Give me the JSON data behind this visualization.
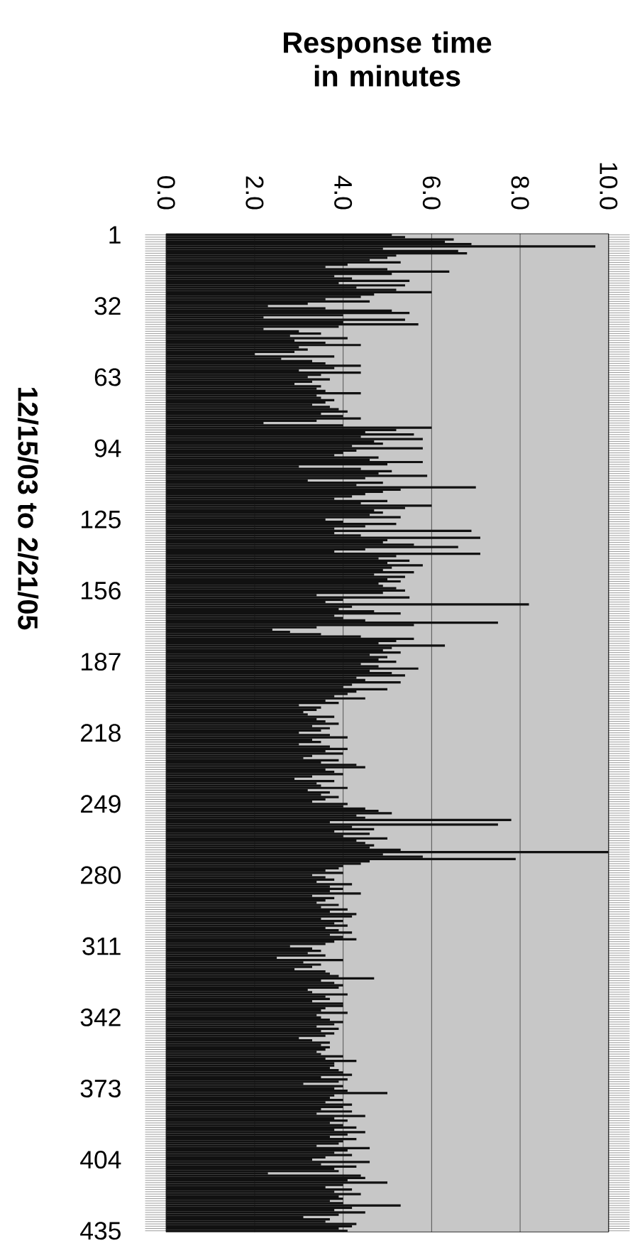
{
  "chart_data": {
    "type": "bar",
    "orientation": "horizontal",
    "title": "Response time in minutes",
    "ylabel": "12/15/03 to 2/21/05",
    "color": "#111111",
    "grid": "x",
    "xlim": [
      0,
      10
    ],
    "xticks": [
      {
        "value": 0,
        "label": "0.0"
      },
      {
        "value": 2,
        "label": "2.0"
      },
      {
        "value": 4,
        "label": "4.0"
      },
      {
        "value": 6,
        "label": "6.0"
      },
      {
        "value": 8,
        "label": "8.0"
      },
      {
        "value": 10,
        "label": "10.0"
      }
    ],
    "categories": [
      "1",
      null,
      null,
      null,
      null,
      null,
      null,
      null,
      null,
      null,
      null,
      null,
      null,
      null,
      null,
      null,
      null,
      null,
      null,
      null,
      null,
      null,
      null,
      null,
      null,
      null,
      null,
      null,
      null,
      null,
      null,
      "32",
      null,
      null,
      null,
      null,
      null,
      null,
      null,
      null,
      null,
      null,
      null,
      null,
      null,
      null,
      null,
      null,
      null,
      null,
      null,
      null,
      null,
      null,
      null,
      null,
      null,
      null,
      null,
      null,
      null,
      null,
      "63",
      null,
      null,
      null,
      null,
      null,
      null,
      null,
      null,
      null,
      null,
      null,
      null,
      null,
      null,
      null,
      null,
      null,
      null,
      null,
      null,
      null,
      null,
      null,
      null,
      null,
      null,
      null,
      null,
      null,
      null,
      "94",
      null,
      null,
      null,
      null,
      null,
      null,
      null,
      null,
      null,
      null,
      null,
      null,
      null,
      null,
      null,
      null,
      null,
      null,
      null,
      null,
      null,
      null,
      null,
      null,
      null,
      null,
      null,
      null,
      null,
      null,
      "125",
      null,
      null,
      null,
      null,
      null,
      null,
      null,
      null,
      null,
      null,
      null,
      null,
      null,
      null,
      null,
      null,
      null,
      null,
      null,
      null,
      null,
      null,
      null,
      null,
      null,
      null,
      null,
      null,
      null,
      null,
      "156",
      null,
      null,
      null,
      null,
      null,
      null,
      null,
      null,
      null,
      null,
      null,
      null,
      null,
      null,
      null,
      null,
      null,
      null,
      null,
      null,
      null,
      null,
      null,
      null,
      null,
      null,
      null,
      null,
      null,
      null,
      "187",
      null,
      null,
      null,
      null,
      null,
      null,
      null,
      null,
      null,
      null,
      null,
      null,
      null,
      null,
      null,
      null,
      null,
      null,
      null,
      null,
      null,
      null,
      null,
      null,
      null,
      null,
      null,
      null,
      null,
      null,
      "218",
      null,
      null,
      null,
      null,
      null,
      null,
      null,
      null,
      null,
      null,
      null,
      null,
      null,
      null,
      null,
      null,
      null,
      null,
      null,
      null,
      null,
      null,
      null,
      null,
      null,
      null,
      null,
      null,
      null,
      null,
      "249",
      null,
      null,
      null,
      null,
      null,
      null,
      null,
      null,
      null,
      null,
      null,
      null,
      null,
      null,
      null,
      null,
      null,
      null,
      null,
      null,
      null,
      null,
      null,
      null,
      null,
      null,
      null,
      null,
      null,
      null,
      "280",
      null,
      null,
      null,
      null,
      null,
      null,
      null,
      null,
      null,
      null,
      null,
      null,
      null,
      null,
      null,
      null,
      null,
      null,
      null,
      null,
      null,
      null,
      null,
      null,
      null,
      null,
      null,
      null,
      null,
      null,
      "311",
      null,
      null,
      null,
      null,
      null,
      null,
      null,
      null,
      null,
      null,
      null,
      null,
      null,
      null,
      null,
      null,
      null,
      null,
      null,
      null,
      null,
      null,
      null,
      null,
      null,
      null,
      null,
      null,
      null,
      null,
      "342",
      null,
      null,
      null,
      null,
      null,
      null,
      null,
      null,
      null,
      null,
      null,
      null,
      null,
      null,
      null,
      null,
      null,
      null,
      null,
      null,
      null,
      null,
      null,
      null,
      null,
      null,
      null,
      null,
      null,
      null,
      "373",
      null,
      null,
      null,
      null,
      null,
      null,
      null,
      null,
      null,
      null,
      null,
      null,
      null,
      null,
      null,
      null,
      null,
      null,
      null,
      null,
      null,
      null,
      null,
      null,
      null,
      null,
      null,
      null,
      null,
      null,
      "404",
      null,
      null,
      null,
      null,
      null,
      null,
      null,
      null,
      null,
      null,
      null,
      null,
      null,
      null,
      null,
      null,
      null,
      null,
      null,
      null,
      null,
      null,
      null,
      null,
      null,
      null,
      null,
      null,
      null,
      null,
      "435"
    ],
    "values": [
      5.1,
      5.4,
      6.5,
      6.3,
      6.9,
      9.7,
      4.9,
      6.6,
      6.8,
      5.2,
      5.0,
      4.6,
      5.3,
      4.1,
      3.6,
      5.0,
      6.4,
      5.1,
      3.8,
      4.2,
      5.5,
      3.9,
      5.4,
      4.3,
      5.2,
      6.0,
      4.7,
      4.4,
      3.6,
      4.6,
      3.2,
      2.3,
      3.6,
      5.1,
      5.5,
      4.0,
      2.2,
      5.4,
      4.0,
      5.7,
      3.9,
      2.2,
      3.0,
      3.5,
      2.8,
      4.1,
      2.9,
      3.6,
      4.4,
      3.0,
      3.2,
      2.9,
      2.0,
      3.8,
      2.6,
      3.3,
      3.6,
      4.4,
      3.8,
      3.0,
      4.4,
      3.5,
      3.2,
      3.7,
      3.3,
      2.9,
      3.5,
      3.4,
      3.6,
      4.4,
      3.4,
      3.5,
      3.8,
      3.6,
      3.3,
      3.7,
      3.9,
      4.1,
      3.5,
      4.0,
      4.4,
      3.4,
      2.2,
      4.0,
      6.0,
      5.2,
      4.5,
      5.6,
      4.4,
      5.8,
      4.7,
      4.9,
      4.2,
      5.8,
      4.3,
      4.0,
      3.8,
      4.8,
      4.6,
      5.8,
      5.0,
      3.0,
      4.4,
      5.1,
      4.8,
      5.9,
      4.5,
      3.2,
      4.9,
      4.3,
      7.0,
      5.3,
      4.9,
      4.5,
      4.2,
      3.8,
      5.0,
      4.4,
      6.0,
      5.4,
      4.7,
      4.9,
      4.6,
      5.3,
      3.6,
      4.0,
      5.2,
      4.5,
      3.8,
      6.9,
      3.8,
      4.4,
      7.1,
      5.0,
      4.9,
      5.6,
      6.6,
      4.5,
      3.8,
      7.1,
      5.2,
      4.8,
      5.5,
      5.0,
      5.8,
      5.1,
      4.9,
      5.6,
      4.7,
      5.4,
      5.0,
      5.3,
      4.8,
      4.9,
      5.2,
      5.4,
      4.9,
      3.4,
      5.5,
      4.0,
      3.6,
      8.2,
      4.2,
      3.9,
      4.7,
      5.3,
      3.8,
      4.0,
      4.5,
      7.5,
      5.6,
      3.4,
      2.4,
      2.8,
      3.5,
      4.4,
      5.6,
      5.2,
      4.8,
      6.3,
      5.1,
      4.9,
      5.3,
      4.6,
      5.0,
      4.8,
      5.2,
      4.4,
      4.8,
      5.7,
      4.6,
      5.1,
      5.4,
      4.3,
      4.5,
      5.3,
      4.2,
      4.0,
      5.0,
      4.3,
      4.1,
      3.8,
      4.5,
      3.6,
      3.9,
      3.0,
      3.5,
      3.4,
      3.1,
      3.2,
      3.8,
      3.4,
      3.6,
      3.9,
      3.3,
      3.7,
      3.5,
      3.0,
      3.7,
      4.1,
      3.3,
      3.5,
      3.0,
      3.7,
      4.1,
      3.6,
      4.0,
      3.3,
      3.1,
      3.9,
      3.5,
      4.3,
      4.5,
      3.6,
      3.8,
      4.0,
      3.3,
      2.9,
      3.8,
      3.4,
      3.5,
      4.1,
      3.2,
      3.7,
      3.5,
      3.9,
      3.6,
      3.3,
      4.1,
      4.0,
      4.5,
      4.8,
      5.1,
      4.3,
      4.5,
      7.8,
      3.7,
      7.5,
      4.2,
      4.7,
      3.8,
      4.6,
      4.0,
      5.0,
      4.3,
      4.5,
      4.7,
      4.6,
      5.3,
      10.0,
      4.9,
      5.8,
      7.9,
      4.6,
      4.4,
      4.0,
      3.9,
      3.6,
      4.0,
      3.3,
      3.6,
      3.8,
      3.4,
      4.2,
      3.7,
      4.0,
      3.7,
      4.4,
      3.3,
      3.8,
      3.6,
      3.4,
      3.9,
      3.5,
      4.1,
      3.7,
      4.3,
      4.2,
      3.5,
      4.0,
      3.8,
      4.1,
      3.6,
      3.9,
      4.2,
      3.7,
      4.0,
      4.3,
      3.8,
      3.6,
      2.8,
      3.3,
      3.5,
      3.2,
      3.6,
      2.5,
      4.0,
      3.1,
      3.5,
      3.3,
      2.9,
      3.6,
      3.7,
      3.9,
      4.7,
      3.5,
      3.8,
      4.0,
      3.9,
      3.2,
      3.3,
      4.1,
      3.6,
      3.7,
      3.3,
      4.0,
      4.0,
      3.6,
      3.5,
      4.1,
      3.4,
      3.5,
      3.7,
      4.0,
      3.8,
      3.4,
      3.9,
      3.5,
      3.8,
      3.6,
      3.0,
      3.3,
      3.7,
      3.5,
      3.7,
      3.6,
      3.4,
      3.5,
      4.0,
      3.6,
      4.3,
      3.8,
      3.8,
      3.7,
      3.9,
      4.0,
      4.2,
      3.5,
      4.1,
      3.9,
      3.1,
      4.0,
      3.8,
      4.1,
      5.0,
      3.8,
      3.7,
      4.0,
      3.6,
      4.2,
      4.0,
      3.5,
      4.2,
      3.4,
      4.5,
      3.8,
      4.1,
      3.7,
      4.0,
      4.3,
      3.8,
      4.5,
      4.1,
      3.7,
      4.3,
      4.0,
      3.9,
      3.4,
      4.6,
      4.1,
      3.8,
      4.2,
      3.6,
      3.3,
      4.6,
      3.5,
      4.3,
      3.8,
      3.9,
      2.3,
      4.4,
      4.5,
      4.1,
      5.0,
      4.0,
      3.6,
      4.2,
      3.8,
      4.4,
      3.9,
      4.0,
      3.7,
      4.0,
      5.3,
      4.2,
      3.8,
      4.5,
      3.9,
      3.1,
      3.7,
      3.6,
      4.3,
      4.2,
      3.9,
      4.1
    ]
  }
}
